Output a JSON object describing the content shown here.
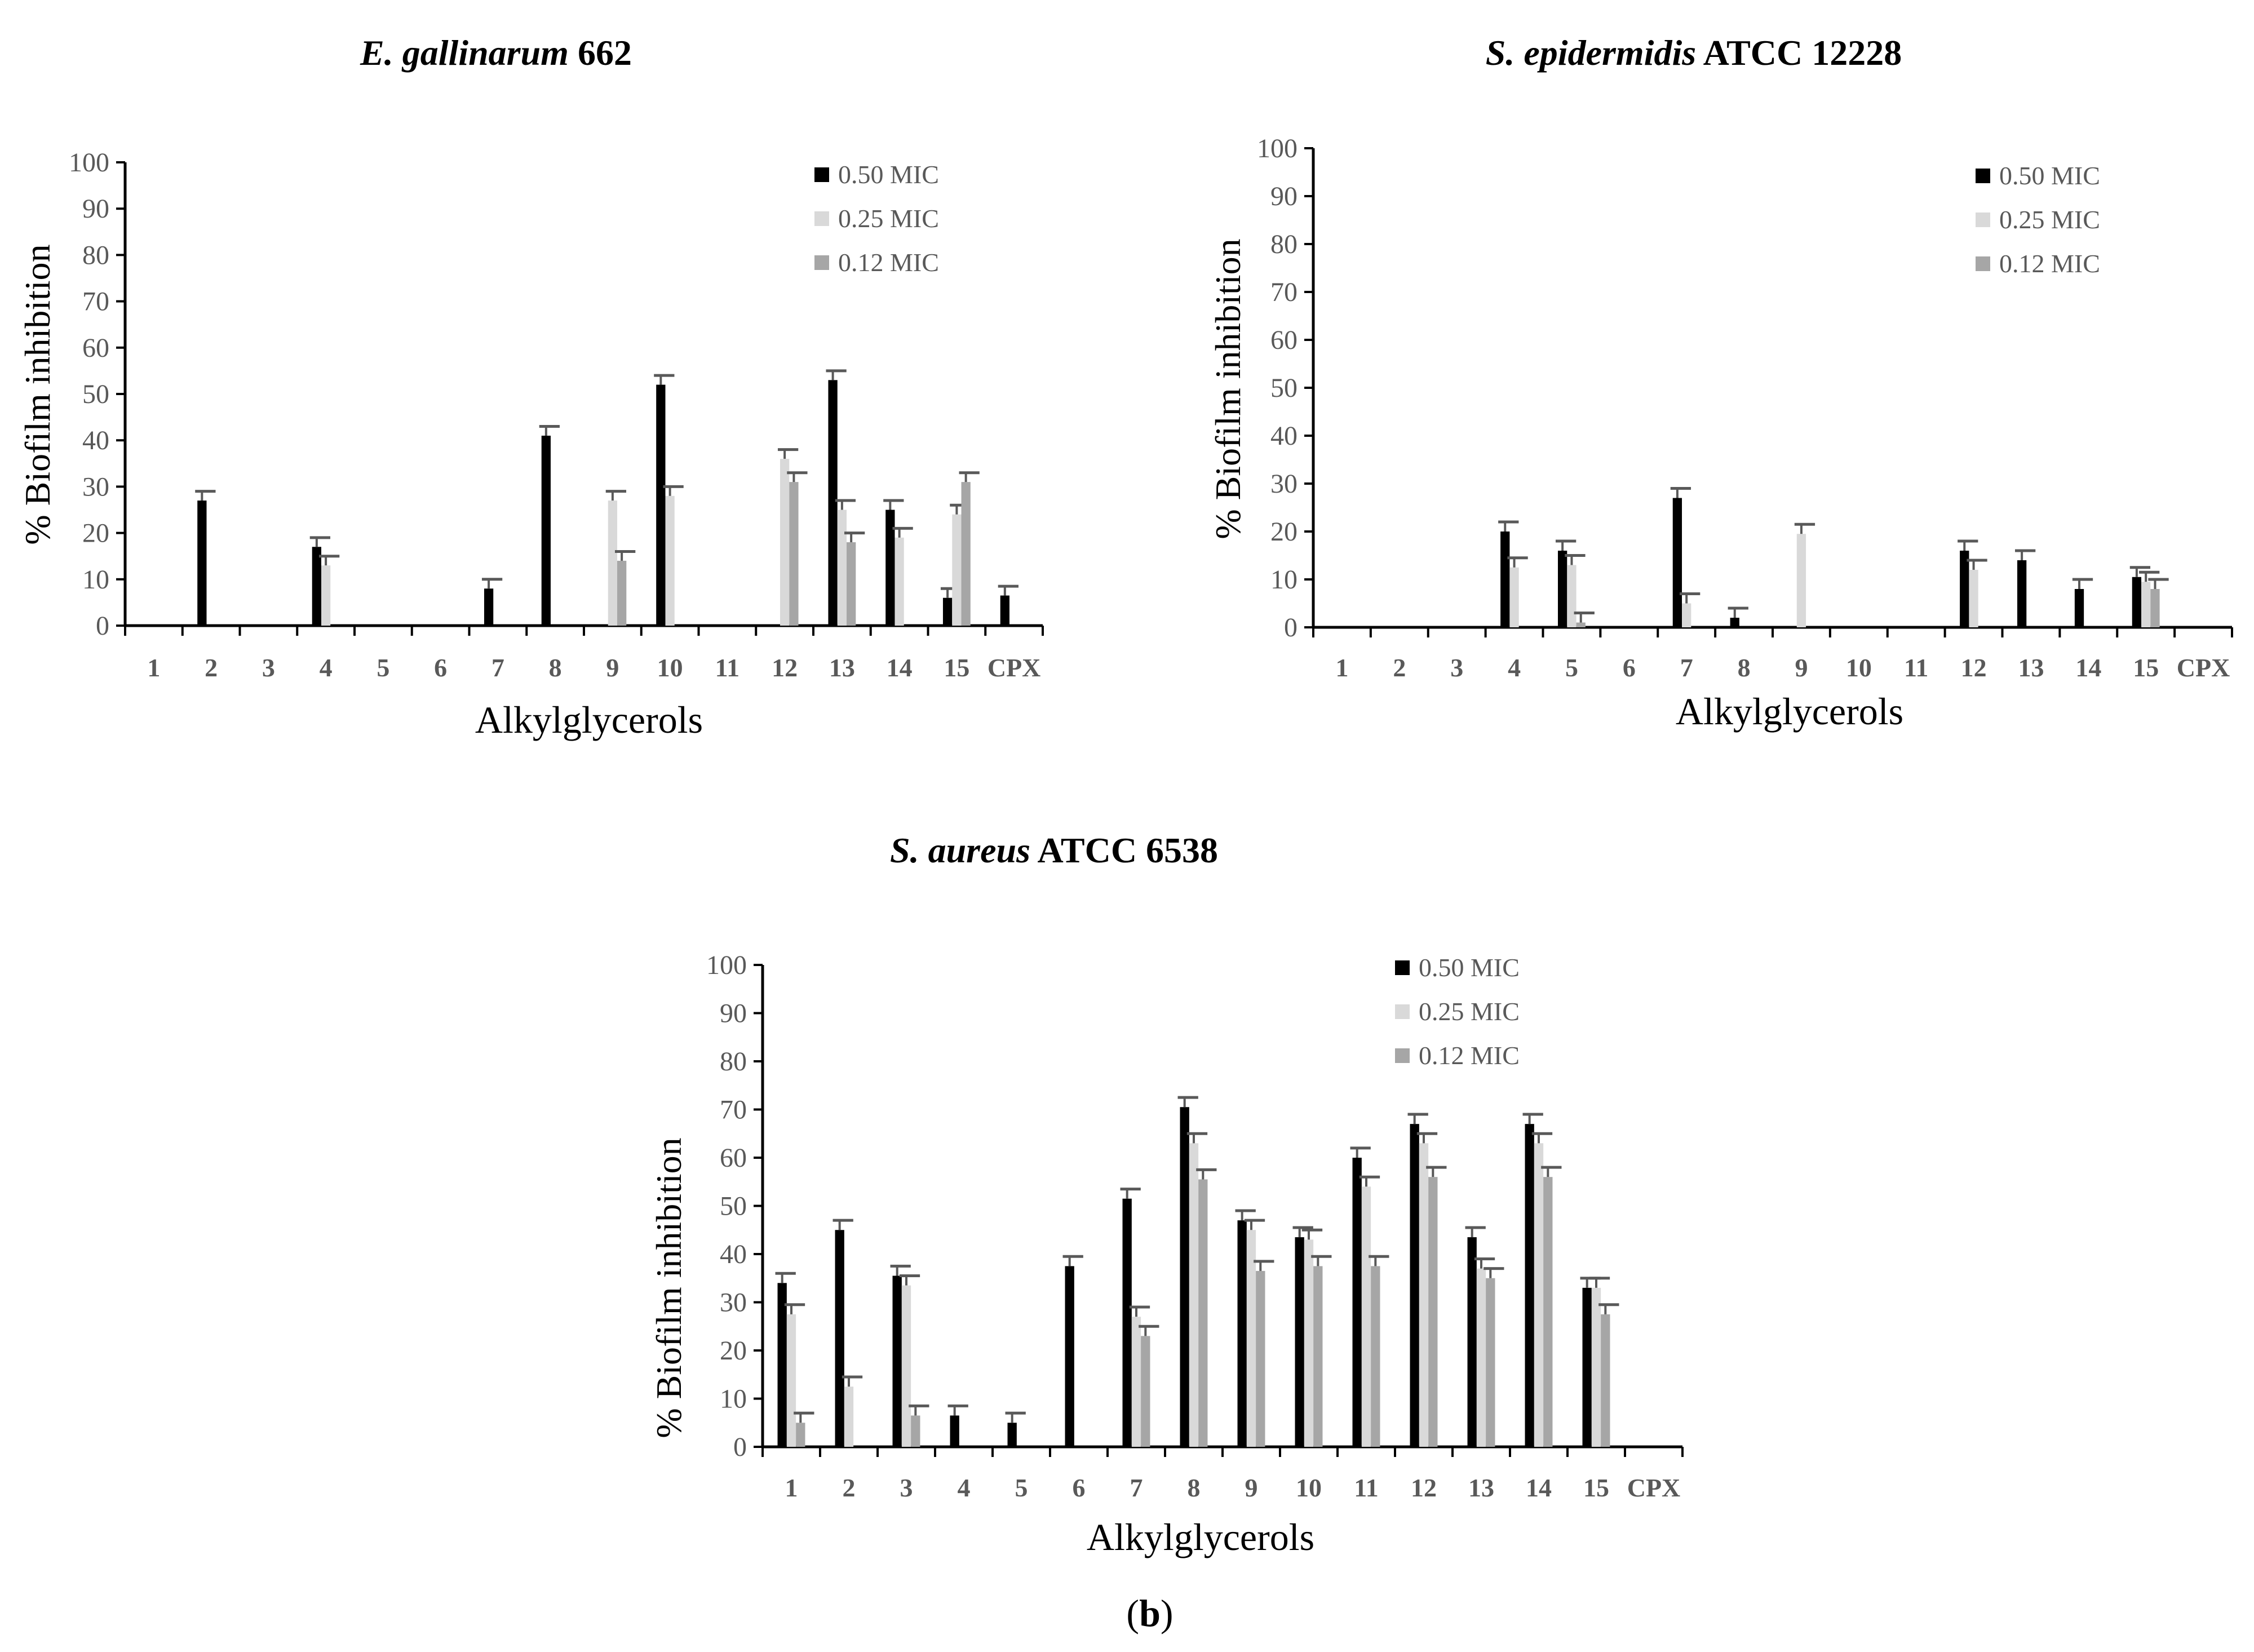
{
  "figure_label": {
    "open": "(",
    "letter": "b",
    "close": ")"
  },
  "colors": {
    "s050": "#000000",
    "s025": "#d9d9d9",
    "s012": "#a6a6a6",
    "axis": "#000000",
    "tick_text": "#595959"
  },
  "chart_data": [
    {
      "id": "gallinarum",
      "type": "bar",
      "title": {
        "italic": "E. gallinarum",
        "plain": " 662"
      },
      "xlabel": "Alkylglycerols",
      "ylabel": "% Biofilm inhibition",
      "ylim": [
        0,
        100
      ],
      "yticks": [
        0,
        10,
        20,
        30,
        40,
        50,
        60,
        70,
        80,
        90,
        100
      ],
      "categories": [
        "1",
        "2",
        "3",
        "4",
        "5",
        "6",
        "7",
        "8",
        "9",
        "10",
        "11",
        "12",
        "13",
        "14",
        "15",
        "CPX"
      ],
      "legend_position": "top-right",
      "series": [
        {
          "name": "0.50 MIC",
          "color": "#000000",
          "values": [
            0,
            27,
            0,
            17,
            0,
            0,
            8,
            41,
            0,
            52,
            0,
            0,
            53,
            25,
            6,
            6.5
          ]
        },
        {
          "name": "0.25 MIC",
          "color": "#d9d9d9",
          "values": [
            0,
            0,
            0,
            13,
            0,
            0,
            0,
            0,
            27,
            28,
            0,
            36,
            25,
            19,
            24,
            0
          ]
        },
        {
          "name": "0.12 MIC",
          "color": "#a6a6a6",
          "values": [
            0,
            0,
            0,
            0,
            0,
            0,
            0,
            0,
            14,
            0,
            0,
            31,
            18,
            0,
            31,
            0
          ]
        }
      ]
    },
    {
      "id": "epidermidis",
      "type": "bar",
      "title": {
        "italic": "S. epidermidis",
        "plain": " ATCC 12228"
      },
      "xlabel": "Alkylglycerols",
      "ylabel": "% Biofilm inhibition",
      "ylim": [
        0,
        100
      ],
      "yticks": [
        0,
        10,
        20,
        30,
        40,
        50,
        60,
        70,
        80,
        90,
        100
      ],
      "categories": [
        "1",
        "2",
        "3",
        "4",
        "5",
        "6",
        "7",
        "8",
        "9",
        "10",
        "11",
        "12",
        "13",
        "14",
        "15",
        "CPX"
      ],
      "legend_position": "top-right",
      "series": [
        {
          "name": "0.50 MIC",
          "color": "#000000",
          "values": [
            0,
            0,
            0,
            20,
            16,
            0,
            27,
            2,
            0,
            0,
            0,
            16,
            14,
            8,
            10.5,
            0
          ]
        },
        {
          "name": "0.25 MIC",
          "color": "#d9d9d9",
          "values": [
            0,
            0,
            0,
            12.5,
            13,
            0,
            5,
            0,
            19.5,
            0,
            0,
            12,
            0,
            0,
            9.5,
            0
          ]
        },
        {
          "name": "0.12 MIC",
          "color": "#a6a6a6",
          "values": [
            0,
            0,
            0,
            0,
            1,
            0,
            0,
            0,
            0,
            0,
            0,
            0,
            0,
            0,
            8,
            0
          ]
        }
      ]
    },
    {
      "id": "aureus",
      "type": "bar",
      "title": {
        "italic": "S. aureus",
        "plain": " ATCC 6538"
      },
      "xlabel": "Alkylglycerols",
      "ylabel": "% Biofilm inhibition",
      "ylim": [
        0,
        100
      ],
      "yticks": [
        0,
        10,
        20,
        30,
        40,
        50,
        60,
        70,
        80,
        90,
        100
      ],
      "categories": [
        "1",
        "2",
        "3",
        "4",
        "5",
        "6",
        "7",
        "8",
        "9",
        "10",
        "11",
        "12",
        "13",
        "14",
        "15",
        "CPX"
      ],
      "legend_position": "top-right",
      "series": [
        {
          "name": "0.50 MIC",
          "color": "#000000",
          "values": [
            34,
            45,
            35.5,
            6.5,
            5,
            37.5,
            51.5,
            70.5,
            47,
            43.5,
            60,
            67,
            43.5,
            67,
            33,
            0
          ]
        },
        {
          "name": "0.25 MIC",
          "color": "#d9d9d9",
          "values": [
            27.5,
            12.5,
            33.5,
            0,
            0,
            0,
            27,
            63,
            45,
            43,
            54,
            63,
            37,
            63,
            33,
            0
          ]
        },
        {
          "name": "0.12 MIC",
          "color": "#a6a6a6",
          "values": [
            5,
            0,
            6.5,
            0,
            0,
            0,
            23,
            55.5,
            36.5,
            37.5,
            37.5,
            56,
            35,
            56,
            27.5,
            0
          ]
        }
      ]
    }
  ]
}
